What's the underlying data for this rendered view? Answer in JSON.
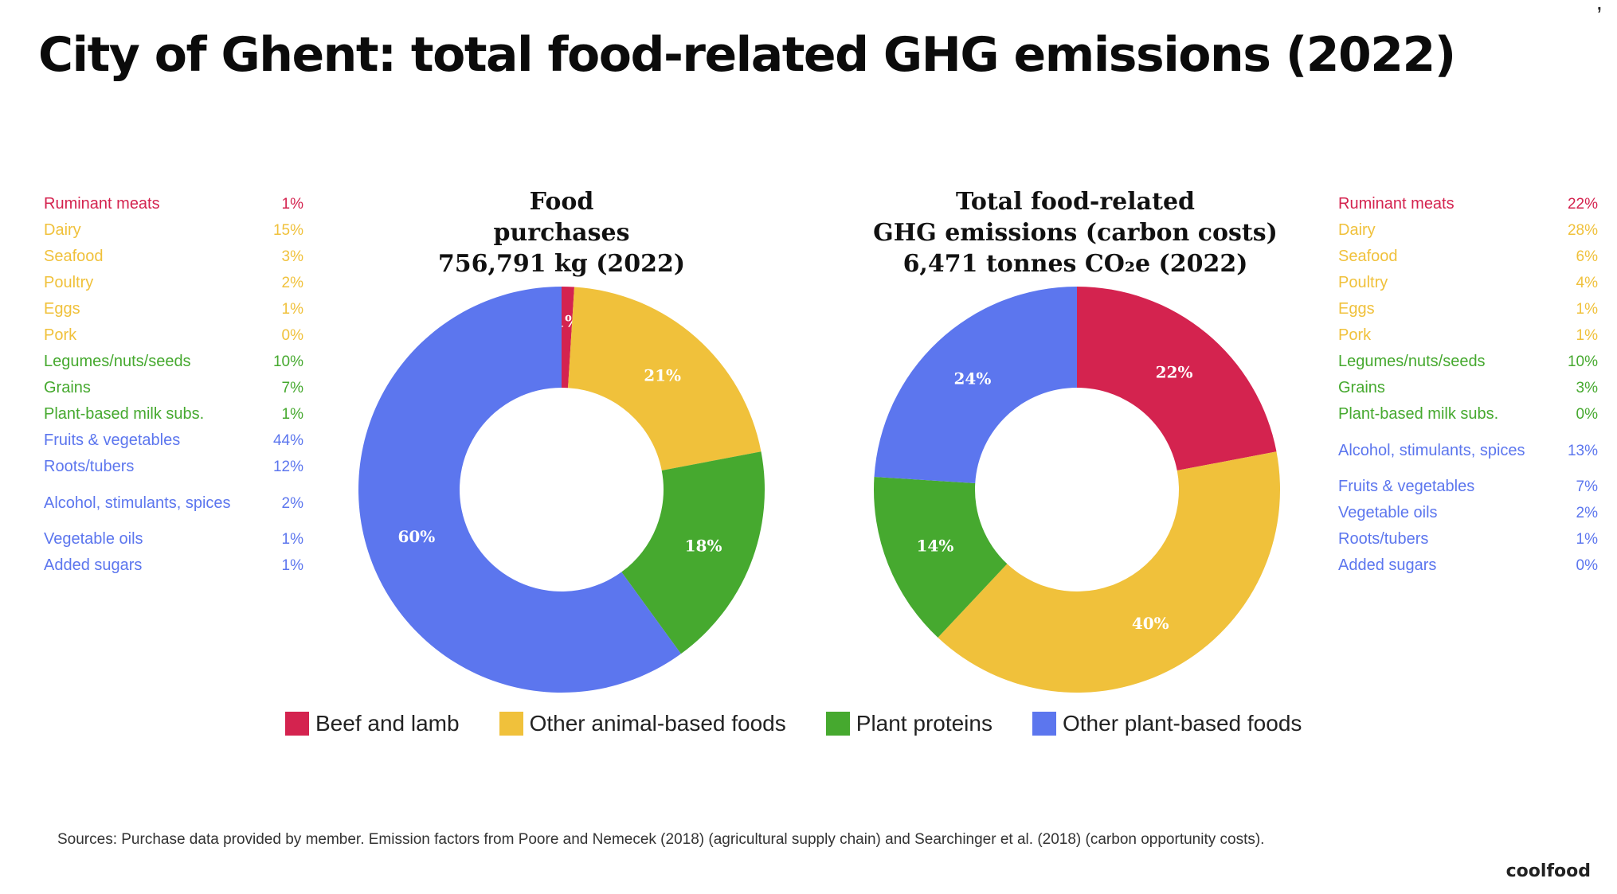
{
  "page": {
    "title": "City of Ghent: total food-related GHG emissions (2022)",
    "sources": "Sources: Purchase data provided by member. Emission factors from Poore and Nemecek (2018) (agricultural supply chain) and Searchinger et al. (2018) (carbon opportunity costs).",
    "logo": "coolfood",
    "corner_mark": ","
  },
  "colors": {
    "beef": "#d4234f",
    "animal": "#f0c13b",
    "plant_protein": "#46a92f",
    "plant_other": "#5c76ee"
  },
  "left_list": [
    {
      "label": "Ruminant meats",
      "pct": "1%",
      "color": "#d4234f"
    },
    {
      "label": "Dairy",
      "pct": "15%",
      "color": "#f0c13b"
    },
    {
      "label": "Seafood",
      "pct": "3%",
      "color": "#f0c13b"
    },
    {
      "label": "Poultry",
      "pct": "2%",
      "color": "#f0c13b"
    },
    {
      "label": "Eggs",
      "pct": "1%",
      "color": "#f0c13b"
    },
    {
      "label": "Pork",
      "pct": "0%",
      "color": "#f0c13b"
    },
    {
      "label": "Legumes/nuts/seeds",
      "pct": "10%",
      "color": "#46a92f"
    },
    {
      "label": "Grains",
      "pct": "7%",
      "color": "#46a92f"
    },
    {
      "label": "Plant-based milk subs.",
      "pct": "1%",
      "color": "#46a92f"
    },
    {
      "label": "Fruits & vegetables",
      "pct": "44%",
      "color": "#5c76ee"
    },
    {
      "label": "Roots/tubers",
      "pct": "12%",
      "color": "#5c76ee"
    },
    {
      "label": "Alcohol, stimulants, spices",
      "pct": "2%",
      "color": "#5c76ee",
      "two_line": true
    },
    {
      "label": "Vegetable oils",
      "pct": "1%",
      "color": "#5c76ee"
    },
    {
      "label": "Added sugars",
      "pct": "1%",
      "color": "#5c76ee"
    }
  ],
  "right_list": [
    {
      "label": "Ruminant meats",
      "pct": "22%",
      "color": "#d4234f"
    },
    {
      "label": "Dairy",
      "pct": "28%",
      "color": "#f0c13b"
    },
    {
      "label": "Seafood",
      "pct": "6%",
      "color": "#f0c13b"
    },
    {
      "label": "Poultry",
      "pct": "4%",
      "color": "#f0c13b"
    },
    {
      "label": "Eggs",
      "pct": "1%",
      "color": "#f0c13b"
    },
    {
      "label": "Pork",
      "pct": "1%",
      "color": "#f0c13b"
    },
    {
      "label": "Legumes/nuts/seeds",
      "pct": "10%",
      "color": "#46a92f"
    },
    {
      "label": "Grains",
      "pct": "3%",
      "color": "#46a92f"
    },
    {
      "label": "Plant-based milk subs.",
      "pct": "0%",
      "color": "#46a92f"
    },
    {
      "label": "Alcohol, stimulants, spices",
      "pct": "13%",
      "color": "#5c76ee",
      "two_line": true
    },
    {
      "label": "Fruits & vegetables",
      "pct": "7%",
      "color": "#5c76ee"
    },
    {
      "label": "Vegetable oils",
      "pct": "2%",
      "color": "#5c76ee"
    },
    {
      "label": "Roots/tubers",
      "pct": "1%",
      "color": "#5c76ee"
    },
    {
      "label": "Added sugars",
      "pct": "0%",
      "color": "#5c76ee"
    }
  ],
  "chart_data": [
    {
      "type": "pie",
      "donut": true,
      "title_lines": [
        "Food",
        "purchases",
        "756,791 kg (2022)"
      ],
      "slices": [
        {
          "name": "Beef and lamb",
          "value": 1,
          "label": "1%"
        },
        {
          "name": "Other animal-based foods",
          "value": 21,
          "label": "21%"
        },
        {
          "name": "Plant proteins",
          "value": 18,
          "label": "18%"
        },
        {
          "name": "Other plant-based foods",
          "value": 60,
          "label": "60%"
        }
      ]
    },
    {
      "type": "pie",
      "donut": true,
      "title_lines": [
        "Total food-related",
        "GHG emissions (carbon costs)",
        "6,471 tonnes CO₂e (2022)"
      ],
      "slices": [
        {
          "name": "Beef and lamb",
          "value": 22,
          "label": "22%"
        },
        {
          "name": "Other animal-based foods",
          "value": 40,
          "label": "40%"
        },
        {
          "name": "Plant proteins",
          "value": 14,
          "label": "14%"
        },
        {
          "name": "Other plant-based foods",
          "value": 24,
          "label": "24%"
        }
      ]
    }
  ],
  "legend": [
    {
      "label": "Beef and lamb",
      "color": "#d4234f"
    },
    {
      "label": "Other animal-based foods",
      "color": "#f0c13b"
    },
    {
      "label": "Plant proteins",
      "color": "#46a92f"
    },
    {
      "label": "Other plant-based foods",
      "color": "#5c76ee"
    }
  ]
}
